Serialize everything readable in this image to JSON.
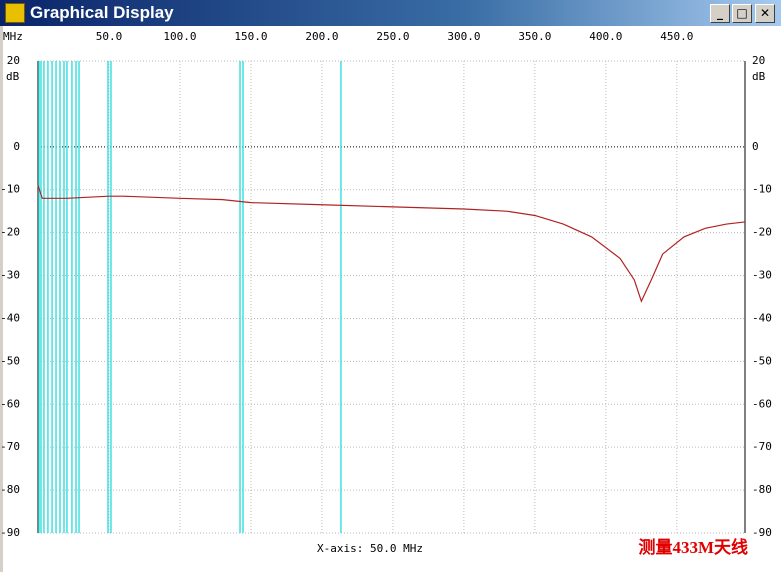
{
  "window": {
    "title": "Graphical Display"
  },
  "chart_data": {
    "type": "line",
    "x_unit_label": "MHz",
    "y_unit_label": "dB",
    "xlabel": "X-axis: 50.0 MHz",
    "annotation": "测量433M天线",
    "xlim": [
      0,
      498
    ],
    "ylim": [
      -90,
      20
    ],
    "xticks": [
      {
        "value": 50,
        "label": "50.0"
      },
      {
        "value": 100,
        "label": "100.0"
      },
      {
        "value": 150,
        "label": "150.0"
      },
      {
        "value": 200,
        "label": "200.0"
      },
      {
        "value": 250,
        "label": "250.0"
      },
      {
        "value": 300,
        "label": "300.0"
      },
      {
        "value": 350,
        "label": "350.0"
      },
      {
        "value": 400,
        "label": "400.0"
      },
      {
        "value": 450,
        "label": "450.0"
      }
    ],
    "yticks": [
      20,
      0,
      -10,
      -20,
      -30,
      -40,
      -50,
      -60,
      -70,
      -80,
      -90
    ],
    "grid": true,
    "zero_line": true,
    "x": [
      0,
      3,
      20,
      50,
      60,
      100,
      130,
      150,
      200,
      250,
      300,
      330,
      350,
      370,
      390,
      410,
      420,
      425,
      432,
      440,
      455,
      470,
      485,
      498
    ],
    "series": [
      {
        "color": "#b22222",
        "values": [
          -9,
          -12,
          -12,
          -11.5,
          -11.5,
          -12,
          -12.3,
          -13,
          -13.5,
          -14,
          -14.5,
          -15,
          -16,
          -18,
          -21,
          -26,
          -31,
          -36,
          -31,
          -25,
          -21,
          -19,
          -18,
          -17.5
        ]
      }
    ],
    "marker_lines": {
      "color": "#40e0e0",
      "x": [
        0.7,
        2.1,
        4.2,
        7,
        9.9,
        12.7,
        15.5,
        18.3,
        20.4,
        23.9,
        26.8,
        28.9,
        49.3,
        51.4,
        142.3,
        144.4,
        213.4
      ]
    }
  }
}
